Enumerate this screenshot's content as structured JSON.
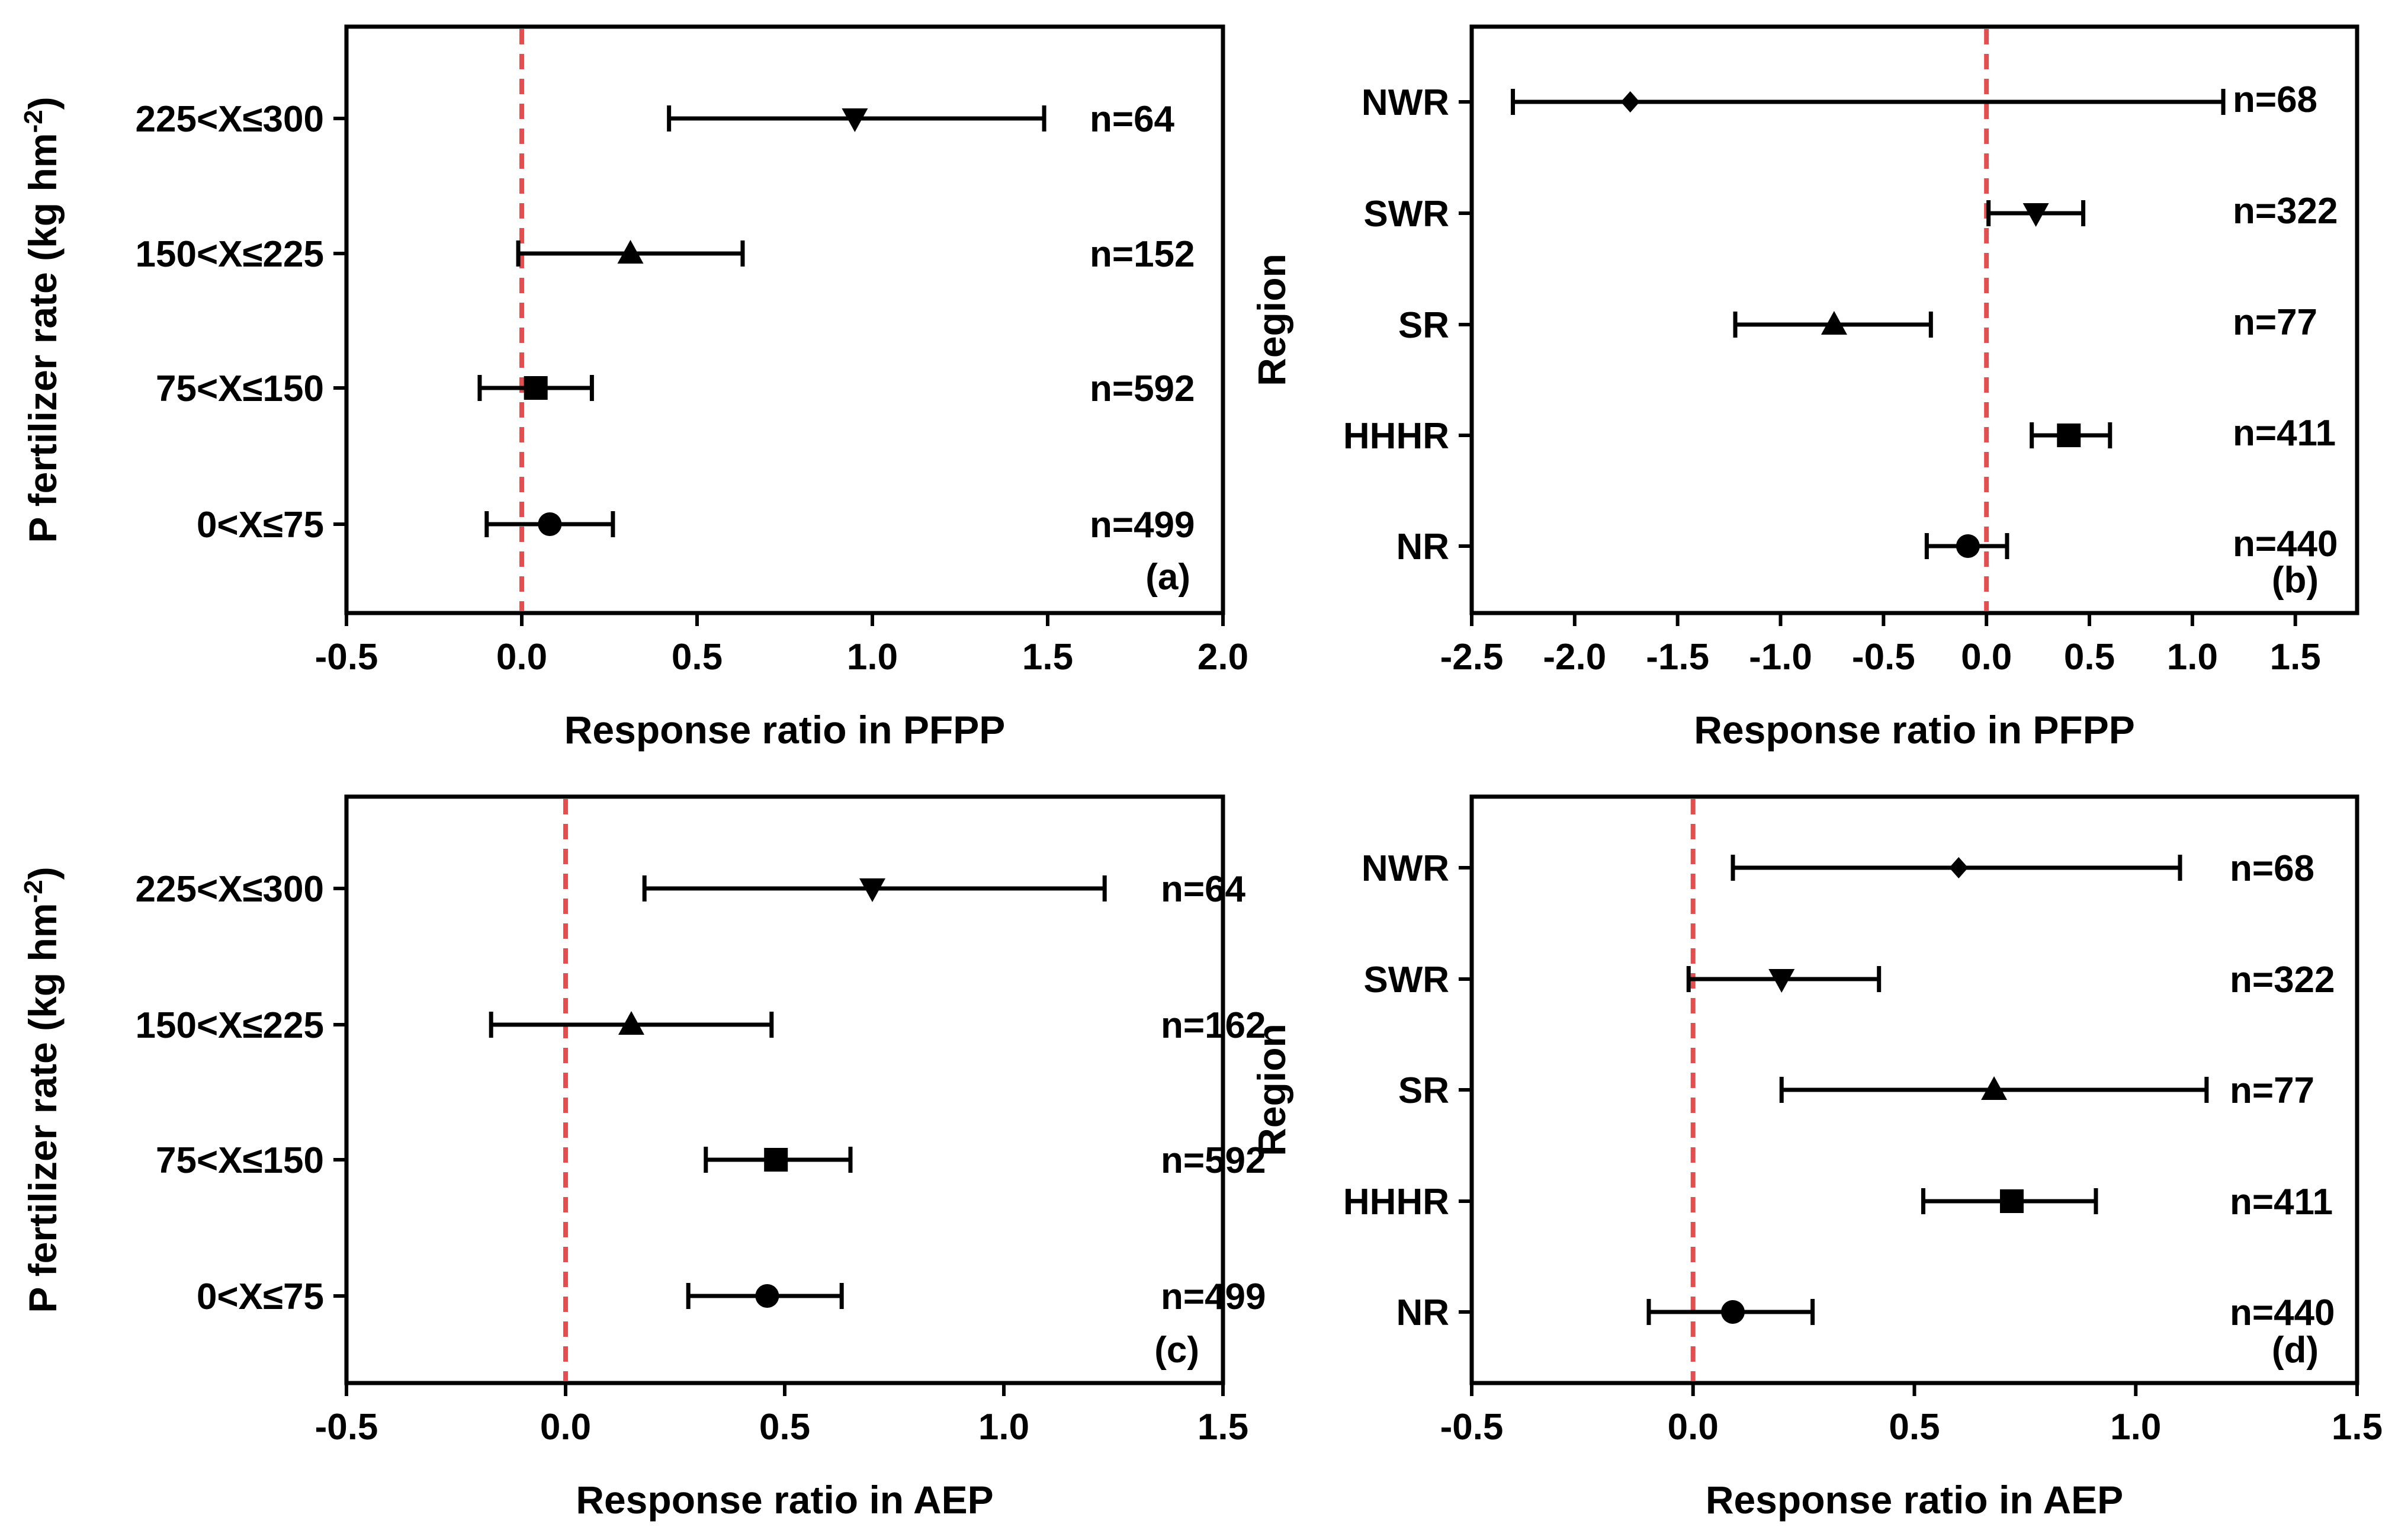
{
  "chart_data": [
    {
      "id": "a",
      "type": "forest",
      "panel_label": "(a)",
      "xlabel": "Response ratio in PFPP",
      "ylabel": "P fertilizer rate (kg hm",
      "ylabel_sup": "-2",
      "ylabel_close": ")",
      "xlim": [
        -0.5,
        2.0
      ],
      "xticks": [
        "-0.5",
        "0.0",
        "0.5",
        "1.0",
        "1.5",
        "2.0"
      ],
      "categories": [
        "225<X≤300",
        "150<X≤225",
        "75<X≤150",
        "0<X≤75"
      ],
      "points": [
        {
          "category": "225<X≤300",
          "mean": 0.95,
          "lo": 0.42,
          "hi": 1.49,
          "marker": "triangle-down",
          "n": "n=64"
        },
        {
          "category": "150<X≤225",
          "mean": 0.31,
          "lo": -0.01,
          "hi": 0.63,
          "marker": "triangle-up",
          "n": "n=152"
        },
        {
          "category": "75<X≤150",
          "mean": 0.04,
          "lo": -0.12,
          "hi": 0.2,
          "marker": "square",
          "n": "n=592"
        },
        {
          "category": "0<X≤75",
          "mean": 0.08,
          "lo": -0.1,
          "hi": 0.26,
          "marker": "circle",
          "n": "n=499"
        }
      ],
      "reference_line": 0.0
    },
    {
      "id": "b",
      "type": "forest",
      "panel_label": "(b)",
      "xlabel": "Response ratio in PFPP",
      "ylabel": "Region",
      "ylabel_sup": "",
      "ylabel_close": "",
      "xlim": [
        -2.5,
        1.8
      ],
      "xticks": [
        "-2.5",
        "-2.0",
        "-1.5",
        "-1.0",
        "-0.5",
        "0.0",
        "0.5",
        "1.0",
        "1.5"
      ],
      "categories": [
        "NWR",
        "SWR",
        "SR",
        "HHHR",
        "NR"
      ],
      "points": [
        {
          "category": "NWR",
          "mean": -1.73,
          "lo": -2.3,
          "hi": 1.15,
          "marker": "diamond",
          "n": "n=68"
        },
        {
          "category": "SWR",
          "mean": 0.24,
          "lo": 0.01,
          "hi": 0.47,
          "marker": "triangle-down",
          "n": "n=322"
        },
        {
          "category": "SR",
          "mean": -0.74,
          "lo": -1.22,
          "hi": -0.27,
          "marker": "triangle-up",
          "n": "n=77"
        },
        {
          "category": "HHHR",
          "mean": 0.4,
          "lo": 0.22,
          "hi": 0.6,
          "marker": "square",
          "n": "n=411"
        },
        {
          "category": "NR",
          "mean": -0.09,
          "lo": -0.29,
          "hi": 0.1,
          "marker": "circle",
          "n": "n=440"
        }
      ],
      "reference_line": 0.0
    },
    {
      "id": "c",
      "type": "forest",
      "panel_label": "(c)",
      "xlabel": "Response ratio in AEP",
      "ylabel": "P fertilizer rate (kg hm",
      "ylabel_sup": "-2",
      "ylabel_close": ")",
      "xlim": [
        -0.5,
        1.5
      ],
      "xticks": [
        "-0.5",
        "0.0",
        "0.5",
        "1.0",
        "1.5"
      ],
      "categories": [
        "225<X≤300",
        "150<X≤225",
        "75<X≤150",
        "0<X≤75"
      ],
      "points": [
        {
          "category": "225<X≤300",
          "mean": 0.7,
          "lo": 0.18,
          "hi": 1.23,
          "marker": "triangle-down",
          "n": "n=64"
        },
        {
          "category": "150<X≤225",
          "mean": 0.15,
          "lo": -0.17,
          "hi": 0.47,
          "marker": "triangle-up",
          "n": "n=162"
        },
        {
          "category": "75<X≤150",
          "mean": 0.48,
          "lo": 0.32,
          "hi": 0.65,
          "marker": "square",
          "n": "n=592"
        },
        {
          "category": "0<X≤75",
          "mean": 0.46,
          "lo": 0.28,
          "hi": 0.63,
          "marker": "circle",
          "n": "n=499"
        }
      ],
      "reference_line": 0.0
    },
    {
      "id": "d",
      "type": "forest",
      "panel_label": "(d)",
      "xlabel": "Response ratio in AEP",
      "ylabel": "Region",
      "ylabel_sup": "",
      "ylabel_close": "",
      "xlim": [
        -0.5,
        1.5
      ],
      "xticks": [
        "-0.5",
        "0.0",
        "0.5",
        "1.0",
        "1.5"
      ],
      "categories": [
        "NWR",
        "SWR",
        "SR",
        "HHHR",
        "NR"
      ],
      "points": [
        {
          "category": "NWR",
          "mean": 0.6,
          "lo": 0.09,
          "hi": 1.1,
          "marker": "diamond",
          "n": "n=68"
        },
        {
          "category": "SWR",
          "mean": 0.2,
          "lo": -0.01,
          "hi": 0.42,
          "marker": "triangle-down",
          "n": "n=322"
        },
        {
          "category": "SR",
          "mean": 0.68,
          "lo": 0.2,
          "hi": 1.16,
          "marker": "triangle-up",
          "n": "n=77"
        },
        {
          "category": "HHHR",
          "mean": 0.72,
          "lo": 0.52,
          "hi": 0.91,
          "marker": "square",
          "n": "n=411"
        },
        {
          "category": "NR",
          "mean": 0.09,
          "lo": -0.1,
          "hi": 0.27,
          "marker": "circle",
          "n": "n=440"
        }
      ],
      "reference_line": 0.0
    }
  ],
  "colors": {
    "reference_line": "#e05050",
    "ink": "#000000"
  }
}
